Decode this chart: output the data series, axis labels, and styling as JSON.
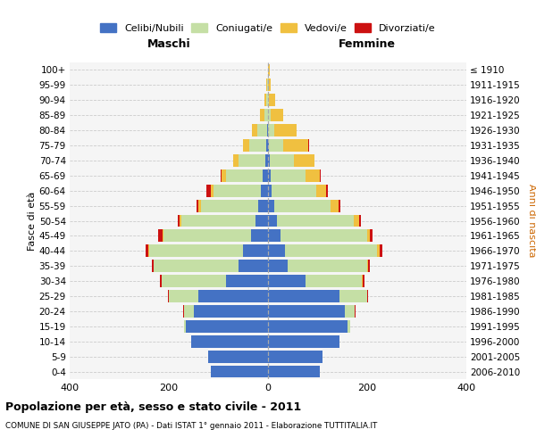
{
  "age_groups": [
    "0-4",
    "5-9",
    "10-14",
    "15-19",
    "20-24",
    "25-29",
    "30-34",
    "35-39",
    "40-44",
    "45-49",
    "50-54",
    "55-59",
    "60-64",
    "65-69",
    "70-74",
    "75-79",
    "80-84",
    "85-89",
    "90-94",
    "95-99",
    "100+"
  ],
  "birth_years": [
    "2006-2010",
    "2001-2005",
    "1996-2000",
    "1991-1995",
    "1986-1990",
    "1981-1985",
    "1976-1980",
    "1971-1975",
    "1966-1970",
    "1961-1965",
    "1956-1960",
    "1951-1955",
    "1946-1950",
    "1941-1945",
    "1936-1940",
    "1931-1935",
    "1926-1930",
    "1921-1925",
    "1916-1920",
    "1911-1915",
    "≤ 1910"
  ],
  "m_cel": [
    115,
    120,
    155,
    165,
    150,
    140,
    85,
    60,
    50,
    35,
    25,
    20,
    15,
    10,
    5,
    3,
    1,
    0,
    0,
    0,
    0
  ],
  "m_con": [
    0,
    0,
    0,
    5,
    20,
    60,
    130,
    170,
    190,
    175,
    150,
    115,
    95,
    75,
    55,
    35,
    20,
    8,
    3,
    1,
    0
  ],
  "m_ved": [
    0,
    0,
    0,
    0,
    0,
    0,
    0,
    1,
    2,
    2,
    3,
    5,
    6,
    8,
    10,
    12,
    12,
    8,
    4,
    2,
    0
  ],
  "m_div": [
    0,
    0,
    0,
    0,
    1,
    2,
    3,
    4,
    5,
    10,
    4,
    4,
    8,
    2,
    1,
    0,
    0,
    0,
    0,
    0,
    0
  ],
  "f_nub": [
    105,
    110,
    145,
    160,
    155,
    145,
    75,
    40,
    35,
    25,
    18,
    12,
    8,
    5,
    3,
    1,
    0,
    0,
    0,
    0,
    0
  ],
  "f_con": [
    0,
    0,
    0,
    5,
    20,
    55,
    115,
    160,
    185,
    175,
    155,
    115,
    90,
    70,
    50,
    30,
    12,
    5,
    2,
    0,
    0
  ],
  "f_ved": [
    0,
    0,
    0,
    0,
    0,
    0,
    1,
    2,
    5,
    5,
    10,
    15,
    20,
    30,
    40,
    50,
    45,
    25,
    12,
    5,
    3
  ],
  "f_div": [
    0,
    0,
    0,
    0,
    1,
    2,
    3,
    4,
    6,
    5,
    5,
    4,
    3,
    2,
    1,
    1,
    0,
    0,
    0,
    0,
    0
  ],
  "colors": {
    "celibi_nubili": "#4472C4",
    "coniugati": "#C5DFA5",
    "vedovi": "#F0C040",
    "divorziati": "#CC1111"
  },
  "xlim": 400,
  "title": "Popolazione per età, sesso e stato civile - 2011",
  "subtitle": "COMUNE DI SAN GIUSEPPE JATO (PA) - Dati ISTAT 1° gennaio 2011 - Elaborazione TUTTITALIA.IT",
  "ylabel_left": "Fasce di età",
  "ylabel_right": "Anni di nascita",
  "xlabel_left": "Maschi",
  "xlabel_right": "Femmine",
  "bg_color": "#f5f5f5",
  "grid_color": "#cccccc"
}
